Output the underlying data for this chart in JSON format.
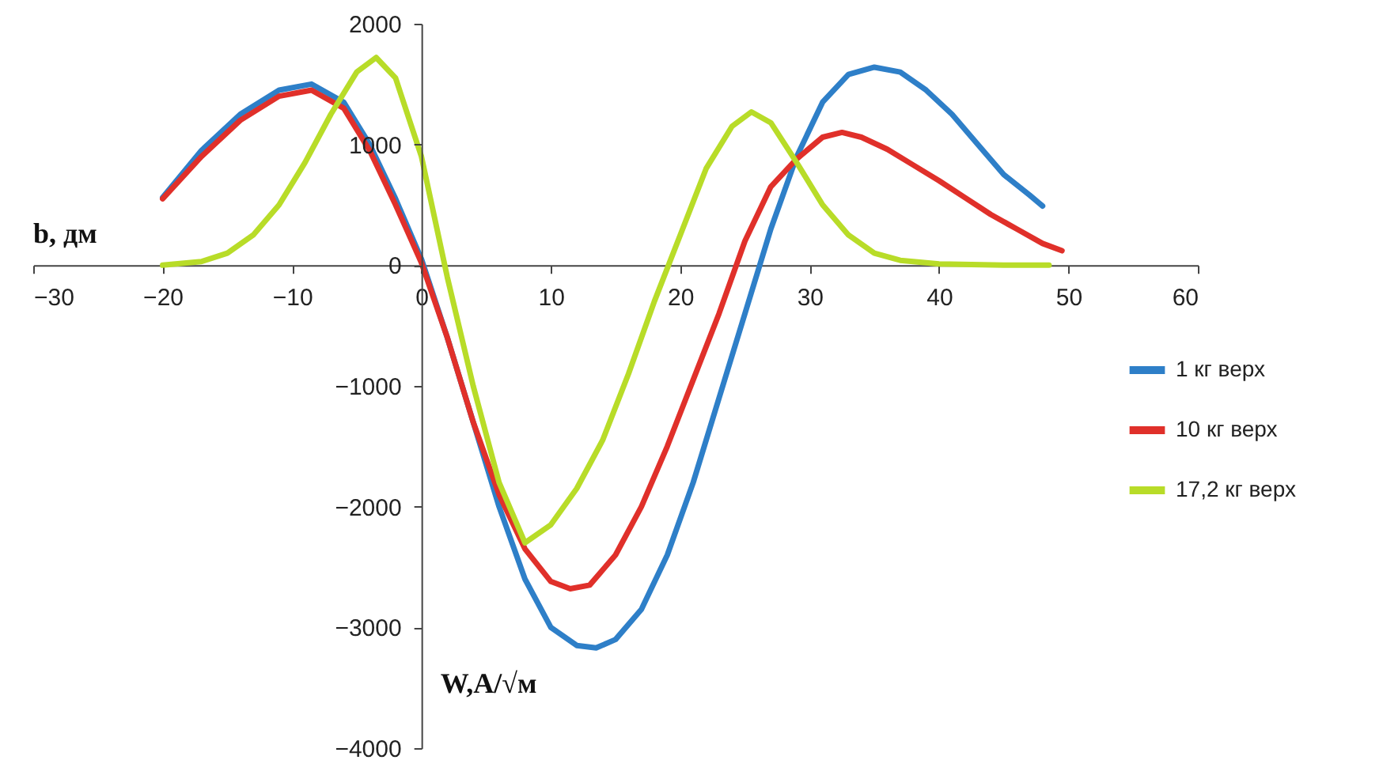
{
  "chart_data": {
    "type": "line",
    "xlabel": "W,A/√м",
    "ylabel": "b, дм",
    "xlim": [
      -30,
      60
    ],
    "xticks": [
      -30,
      -20,
      -10,
      0,
      10,
      20,
      30,
      40,
      50,
      60
    ],
    "ylim": [
      -4000,
      2000
    ],
    "yticks": [
      -4000,
      -3000,
      -2000,
      -1000,
      0,
      1000,
      2000
    ],
    "grid": false,
    "legend": "right",
    "marker": "none",
    "line_style": "solid",
    "series": [
      {
        "name": "1 кг верх",
        "color": "#2e7fc8",
        "x": [
          -20,
          -17,
          -14,
          -11,
          -8.5,
          -6,
          -4,
          -2,
          0,
          2,
          4,
          6,
          8,
          10,
          12,
          13.5,
          15,
          17,
          19,
          21,
          23,
          25,
          27,
          29,
          31,
          33,
          35,
          37,
          39,
          41,
          43,
          45,
          47,
          48
        ],
        "values": [
          560,
          950,
          1250,
          1450,
          1500,
          1350,
          1000,
          550,
          50,
          -600,
          -1300,
          -2000,
          -2600,
          -3000,
          -3150,
          -3170,
          -3100,
          -2850,
          -2400,
          -1800,
          -1100,
          -400,
          300,
          900,
          1350,
          1580,
          1640,
          1600,
          1450,
          1250,
          1000,
          750,
          580,
          490
        ]
      },
      {
        "name": "10 кг верх",
        "color": "#e0302a",
        "x": [
          -20,
          -17,
          -14,
          -11,
          -8.5,
          -6,
          -4,
          -2,
          0,
          2,
          4,
          6,
          8,
          10,
          11.5,
          13,
          15,
          17,
          19,
          21,
          23,
          25,
          27,
          29,
          31,
          32.5,
          34,
          36,
          38,
          40,
          42,
          44,
          46,
          48,
          49.5
        ],
        "values": [
          550,
          900,
          1200,
          1400,
          1450,
          1300,
          950,
          500,
          20,
          -600,
          -1300,
          -1900,
          -2350,
          -2620,
          -2680,
          -2650,
          -2400,
          -2000,
          -1500,
          -950,
          -400,
          200,
          650,
          880,
          1060,
          1100,
          1060,
          960,
          830,
          700,
          560,
          420,
          300,
          180,
          120
        ]
      },
      {
        "name": "17,2 кг верх",
        "color": "#b8dc28",
        "x": [
          -20,
          -17,
          -15,
          -13,
          -11,
          -9,
          -7,
          -5,
          -3.5,
          -2,
          0,
          1,
          2,
          4,
          6,
          8,
          10,
          12,
          14,
          16,
          18,
          20,
          22,
          24,
          25.5,
          27,
          29,
          31,
          33,
          35,
          37,
          40,
          45,
          48.5
        ],
        "values": [
          0,
          30,
          100,
          250,
          500,
          850,
          1250,
          1600,
          1720,
          1550,
          900,
          400,
          -100,
          -1000,
          -1800,
          -2300,
          -2150,
          -1850,
          -1450,
          -900,
          -300,
          250,
          800,
          1150,
          1270,
          1180,
          850,
          500,
          250,
          100,
          40,
          10,
          0,
          0
        ]
      }
    ]
  }
}
